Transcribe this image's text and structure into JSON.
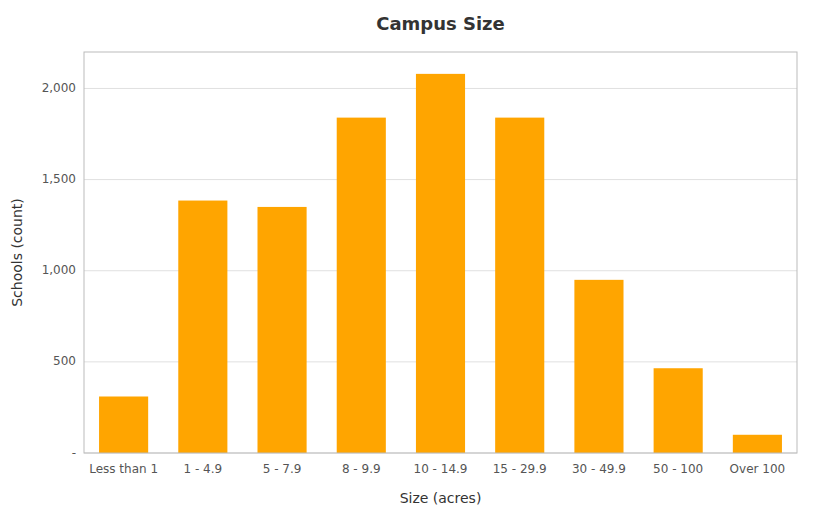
{
  "chart_data": {
    "type": "bar",
    "title": "Campus Size",
    "xlabel": "Size (acres)",
    "ylabel": "Schools (count)",
    "categories": [
      "Less than 1",
      "1 - 4.9",
      "5 - 7.9",
      "8 - 9.9",
      "10 - 14.9",
      "15 - 29.9",
      "30 - 49.9",
      "50 - 100",
      "Over 100"
    ],
    "values": [
      310,
      1385,
      1350,
      1840,
      2080,
      1840,
      950,
      465,
      100
    ],
    "color": "#FFA500",
    "ylim": [
      0,
      2200
    ],
    "yticks": [
      {
        "value": 0,
        "label": "-"
      },
      500,
      {
        "value": 1000,
        "label": "1,000"
      },
      {
        "value": 1500,
        "label": "1,500"
      },
      {
        "value": 2000,
        "label": "2,000"
      }
    ],
    "grid": true
  }
}
